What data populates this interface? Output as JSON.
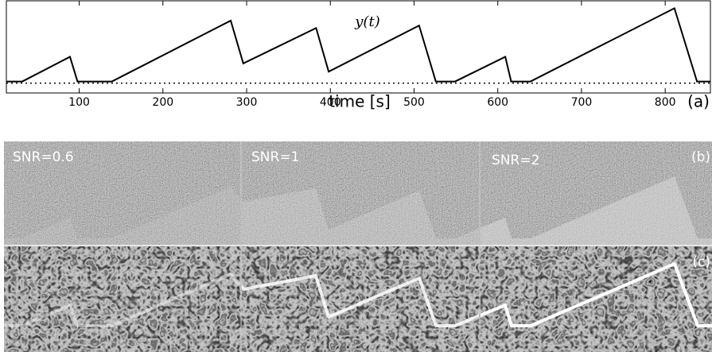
{
  "chart_data": {
    "type": "line",
    "title": "y(t)",
    "x_label": "time [s]",
    "panel_label": "(a)",
    "x": [
      13,
      32,
      89,
      98,
      139,
      281,
      296,
      383,
      398,
      506,
      526,
      549,
      609,
      616,
      639,
      811,
      838,
      854
    ],
    "values": [
      0,
      0,
      0.3,
      0,
      0,
      0.74,
      0.22,
      0.65,
      0.12,
      0.68,
      0,
      0,
      0.3,
      0,
      0,
      0.89,
      0,
      0
    ],
    "color": "#000000",
    "xlim": [
      13,
      854
    ],
    "ylim": [
      -0.12,
      1.0
    ],
    "xticks": [
      100,
      200,
      300,
      400,
      500,
      600,
      700,
      800
    ],
    "hline": 0
  },
  "panels": {
    "b": {
      "label": "(b)",
      "snr": [
        "SNR=0.6",
        "SNR=1",
        "SNR=2"
      ]
    },
    "c": {
      "label": "(c)"
    }
  }
}
